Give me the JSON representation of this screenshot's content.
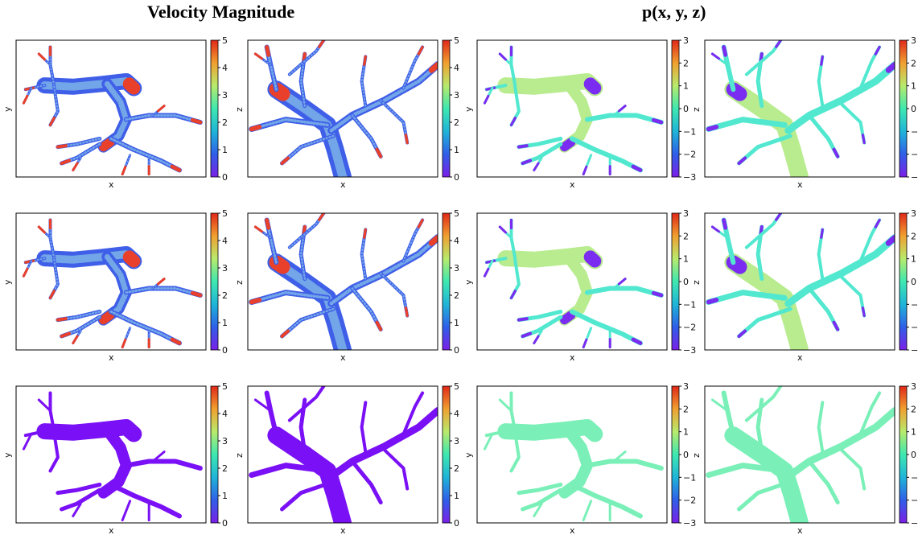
{
  "titles": {
    "left": "Velocity Magnitude",
    "right": "p(x, y, z)"
  },
  "colorscales": {
    "velocity": {
      "min": 0,
      "max": 5,
      "ticks": [
        "0",
        "1",
        "2",
        "3",
        "4",
        "5"
      ]
    },
    "pressure": {
      "min": -3,
      "max": 3,
      "ticks": [
        "−3",
        "−2",
        "−1",
        "0",
        "1",
        "2",
        "3"
      ]
    }
  },
  "panels": [
    {
      "row": 0,
      "col": 0,
      "xlabel": "x",
      "ylabel": "y",
      "field": "velocity",
      "style": "speckle",
      "tree": "xy"
    },
    {
      "row": 0,
      "col": 1,
      "xlabel": "x",
      "ylabel": "z",
      "field": "velocity",
      "style": "speckle",
      "tree": "xz"
    },
    {
      "row": 0,
      "col": 2,
      "xlabel": "x",
      "ylabel": "y",
      "field": "pressure",
      "style": "pressure",
      "tree": "xy"
    },
    {
      "row": 0,
      "col": 3,
      "xlabel": "x",
      "ylabel": "z",
      "field": "pressure",
      "style": "pressure",
      "tree": "xz"
    },
    {
      "row": 1,
      "col": 0,
      "xlabel": "x",
      "ylabel": "y",
      "field": "velocity",
      "style": "speckle",
      "tree": "xy"
    },
    {
      "row": 1,
      "col": 1,
      "xlabel": "x",
      "ylabel": "z",
      "field": "velocity",
      "style": "speckle",
      "tree": "xz"
    },
    {
      "row": 1,
      "col": 2,
      "xlabel": "x",
      "ylabel": "y",
      "field": "pressure",
      "style": "pressure",
      "tree": "xy"
    },
    {
      "row": 1,
      "col": 3,
      "xlabel": "x",
      "ylabel": "z",
      "field": "pressure",
      "style": "pressure",
      "tree": "xz"
    },
    {
      "row": 2,
      "col": 0,
      "xlabel": "x",
      "ylabel": "y",
      "field": "velocity",
      "style": "flat",
      "tree": "xy"
    },
    {
      "row": 2,
      "col": 1,
      "xlabel": "x",
      "ylabel": "z",
      "field": "velocity",
      "style": "flat",
      "tree": "xz"
    },
    {
      "row": 2,
      "col": 2,
      "xlabel": "x",
      "ylabel": "y",
      "field": "pressure",
      "style": "flatmint",
      "tree": "xy"
    },
    {
      "row": 2,
      "col": 3,
      "xlabel": "x",
      "ylabel": "z",
      "field": "pressure",
      "style": "flatmint",
      "tree": "xz"
    }
  ],
  "colors": {
    "velocity_body": "#3f5fe8",
    "velocity_tip": "#e8402a",
    "velocity_flat": "#7a10f5",
    "pressure_trunk": "#b8ec8e",
    "pressure_branch": "#52e8cf",
    "pressure_tip": "#7a2cf0",
    "pressure_mint": "#7af0b8"
  }
}
